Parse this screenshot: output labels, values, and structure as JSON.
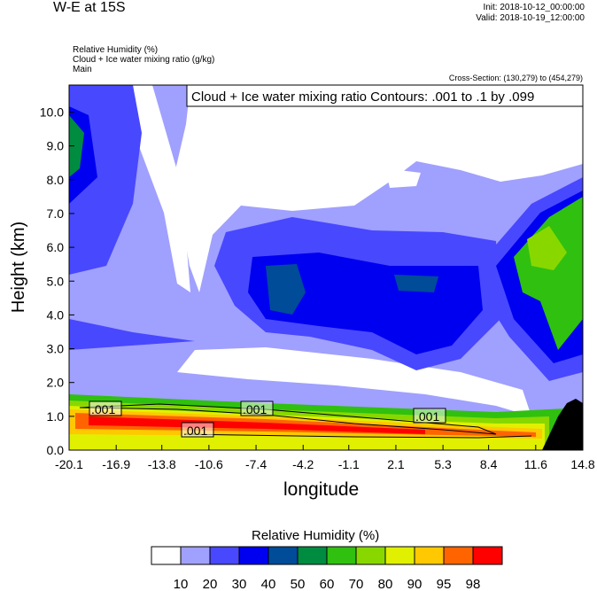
{
  "header": {
    "title": "W-E at 15S",
    "init": "Init: 2018-10-12_00:00:00",
    "valid": "Valid: 2018-10-19_12:00:00",
    "fields": [
      "Relative Humidity   (%)",
      "Cloud + Ice water mixing ratio   (g/kg)",
      "Main"
    ],
    "cross_section": "Cross-Section: (130,279) to (454,279)"
  },
  "chart_data": {
    "type": "heatmap",
    "title": "W-E at 15S",
    "xlabel": "longitude",
    "ylabel": "Height (km)",
    "xlim": [
      -20.1,
      14.8
    ],
    "ylim": [
      0,
      10.8
    ],
    "xticks": [
      "-20.1",
      "-16.9",
      "-13.8",
      "-10.6",
      "-7.4",
      "-4.2",
      "-1.1",
      "2.1",
      "5.3",
      "8.4",
      "11.6",
      "14.8"
    ],
    "yticks": [
      "0.0",
      "1.0",
      "2.0",
      "3.0",
      "4.0",
      "5.0",
      "6.0",
      "7.0",
      "8.0",
      "9.0",
      "10.0"
    ],
    "contour_info": "Cloud + Ice water mixing ratio Contours: .001 to .1 by .099",
    "contour_labels": [
      ".001",
      ".001",
      ".001",
      ".001"
    ],
    "colorbar": {
      "title": "Relative Humidity  (%)",
      "levels": [
        "10",
        "20",
        "30",
        "40",
        "50",
        "60",
        "70",
        "80",
        "90",
        "95",
        "98"
      ],
      "colors": [
        "#ffffff",
        "#a0a0ff",
        "#4848ff",
        "#0000f0",
        "#004c99",
        "#008c40",
        "#30c010",
        "#88d800",
        "#e0f000",
        "#ffc800",
        "#ff6400",
        "#ff0000"
      ]
    },
    "terrain_color": "#000000"
  }
}
